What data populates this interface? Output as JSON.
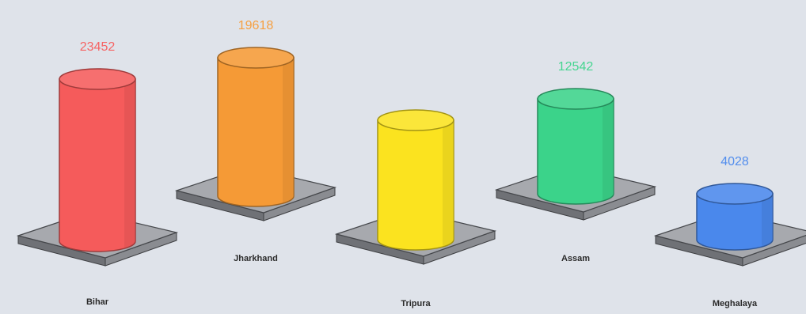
{
  "chart_data": {
    "type": "bar",
    "title": "",
    "xlabel": "",
    "ylabel": "",
    "categories": [
      "Bihar",
      "Jharkhand",
      "Tripura",
      "Assam",
      "Meghalaya"
    ],
    "values": [
      23452,
      19618,
      null,
      12542,
      4028
    ],
    "value_labels": [
      "23452",
      "19618",
      "",
      "12542",
      "4028"
    ],
    "colors": [
      "#f55b5b",
      "#f59a36",
      "#fbe31f",
      "#3bd38a",
      "#4a88ec"
    ]
  }
}
